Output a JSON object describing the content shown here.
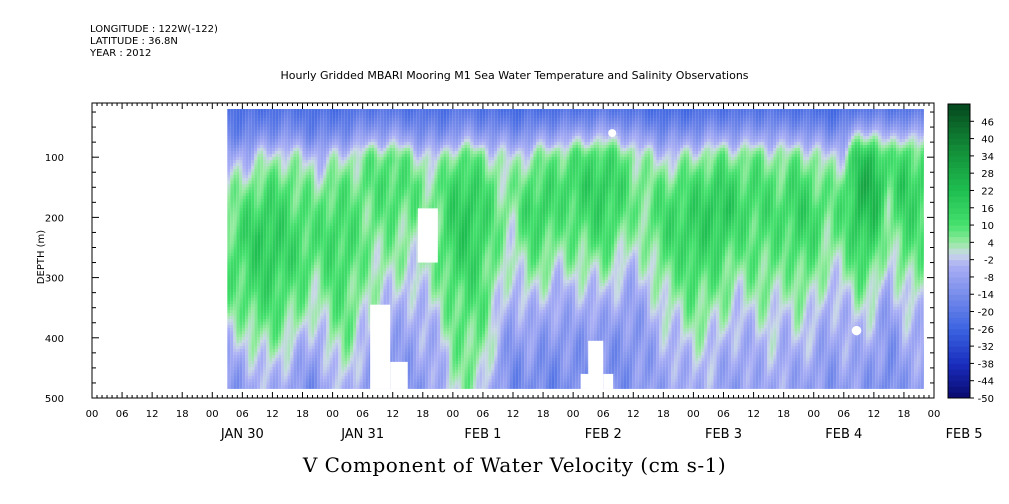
{
  "meta": {
    "longitude": "LONGITUDE : 122W(-122)",
    "latitude": "LATITUDE : 36.8N",
    "year": "YEAR : 2012"
  },
  "chart_data": {
    "type": "heatmap",
    "title": "Hourly Gridded MBARI Mooring M1 Sea Water Temperature and Salinity Observations",
    "xlabel": "V Component of Water Velocity (cm s-1)",
    "ylabel": "DEPTH (m)",
    "xlim_hours": [
      -24,
      144
    ],
    "data_start_hour": 3,
    "data_end_hour": 142,
    "ylim": [
      500,
      10
    ],
    "data_top_depth": 20,
    "data_bottom_depth": 485,
    "y_ticks": [
      100,
      200,
      300,
      400,
      500
    ],
    "x_hour_ticks": [
      "00",
      "06",
      "12",
      "18",
      "00",
      "06",
      "12",
      "18",
      "00",
      "06",
      "12",
      "18",
      "00",
      "06",
      "12",
      "18",
      "00",
      "06",
      "12",
      "18",
      "00",
      "06",
      "12",
      "18",
      "00",
      "06",
      "12",
      "18",
      "00",
      "06",
      "12"
    ],
    "x_hour_tick_values": [
      -24,
      -18,
      -12,
      -6,
      0,
      6,
      12,
      18,
      24,
      30,
      36,
      42,
      48,
      54,
      60,
      66,
      72,
      78,
      84,
      90,
      96,
      102,
      108,
      114,
      120,
      126,
      132,
      138,
      144,
      150,
      156
    ],
    "date_labels": [
      {
        "label": "JAN 30",
        "hour": 6
      },
      {
        "label": "JAN 31",
        "hour": 30
      },
      {
        "label": "FEB  1",
        "hour": 54
      },
      {
        "label": "FEB  2",
        "hour": 78
      },
      {
        "label": "FEB  3",
        "hour": 102
      },
      {
        "label": "FEB  4",
        "hour": 126
      },
      {
        "label": "FEB  5",
        "hour": 150
      }
    ],
    "colorbar_levels": [
      46,
      40,
      34,
      28,
      22,
      16,
      10,
      4,
      -2,
      -8,
      -14,
      -20,
      -26,
      -32,
      -38,
      -44,
      -50
    ],
    "colorbar_range": [
      -50,
      52
    ],
    "surface_layer": {
      "depth_top": 20,
      "depth_bottom": 90,
      "value": -24
    },
    "columns": [
      {
        "hour": 3,
        "v": [
          -20,
          -16,
          -6,
          2,
          4,
          8,
          10,
          8,
          4,
          -2,
          -8,
          -12
        ]
      },
      {
        "hour": 6,
        "v": [
          -20,
          -14,
          -4,
          4,
          10,
          14,
          12,
          10,
          6,
          0,
          -6,
          -10
        ]
      },
      {
        "hour": 9,
        "v": [
          -22,
          -12,
          0,
          8,
          14,
          18,
          16,
          14,
          10,
          4,
          -2,
          -6
        ]
      },
      {
        "hour": 12,
        "v": [
          -20,
          -10,
          2,
          10,
          16,
          18,
          18,
          14,
          10,
          6,
          0,
          -4
        ]
      },
      {
        "hour": 15,
        "v": [
          -18,
          -8,
          4,
          10,
          12,
          14,
          14,
          10,
          8,
          2,
          -4,
          -8
        ]
      },
      {
        "hour": 18,
        "v": [
          -20,
          -12,
          0,
          6,
          10,
          12,
          12,
          8,
          4,
          -2,
          -8,
          -12
        ]
      },
      {
        "hour": 21,
        "v": [
          -22,
          -14,
          -2,
          4,
          8,
          10,
          8,
          4,
          0,
          -6,
          -10,
          -14
        ]
      },
      {
        "hour": 24,
        "v": [
          -22,
          -12,
          0,
          8,
          12,
          14,
          12,
          10,
          8,
          4,
          0,
          -4
        ]
      },
      {
        "hour": 27,
        "v": [
          -20,
          -10,
          2,
          8,
          10,
          12,
          12,
          10,
          8,
          6,
          2,
          -2
        ]
      },
      {
        "hour": 30,
        "v": [
          -18,
          -6,
          6,
          8,
          8,
          8,
          6,
          4,
          2,
          -2,
          -6,
          -10
        ]
      },
      {
        "hour": 33,
        "v": [
          -16,
          -4,
          8,
          10,
          8,
          6,
          4,
          2,
          -2,
          -6,
          -10,
          -12
        ]
      },
      {
        "hour": 36,
        "v": [
          -18,
          -4,
          10,
          12,
          10,
          6,
          4,
          0,
          -4,
          -8,
          -12,
          -14
        ]
      },
      {
        "hour": 39,
        "v": [
          -20,
          -6,
          6,
          10,
          8,
          4,
          2,
          -2,
          -6,
          -8,
          -10,
          -12
        ]
      },
      {
        "hour": 42,
        "v": [
          -20,
          -10,
          2,
          6,
          6,
          4,
          2,
          0,
          -4,
          -6,
          -8,
          -10
        ]
      },
      {
        "hour": 45,
        "v": [
          -22,
          -12,
          0,
          6,
          8,
          8,
          6,
          4,
          0,
          -4,
          -6,
          -8
        ]
      },
      {
        "hour": 48,
        "v": [
          -18,
          -6,
          8,
          14,
          16,
          16,
          14,
          10,
          8,
          6,
          4,
          2
        ]
      },
      {
        "hour": 51,
        "v": [
          -16,
          -4,
          10,
          16,
          20,
          18,
          16,
          12,
          10,
          8,
          6,
          4
        ]
      },
      {
        "hour": 54,
        "v": [
          -20,
          -6,
          6,
          12,
          14,
          14,
          12,
          10,
          8,
          6,
          4,
          0
        ]
      },
      {
        "hour": 57,
        "v": [
          -22,
          -8,
          2,
          6,
          8,
          6,
          4,
          2,
          0,
          -4,
          -8,
          -10
        ]
      },
      {
        "hour": 60,
        "v": [
          -24,
          -10,
          0,
          4,
          4,
          2,
          0,
          -4,
          -8,
          -12,
          -14,
          -16
        ]
      },
      {
        "hour": 63,
        "v": [
          -22,
          -8,
          4,
          10,
          14,
          10,
          6,
          2,
          -4,
          -8,
          -12,
          -14
        ]
      },
      {
        "hour": 66,
        "v": [
          -22,
          -6,
          6,
          12,
          16,
          12,
          6,
          0,
          -6,
          -10,
          -14,
          -16
        ]
      },
      {
        "hour": 69,
        "v": [
          -20,
          -4,
          8,
          12,
          10,
          6,
          2,
          -4,
          -8,
          -12,
          -14,
          -16
        ]
      },
      {
        "hour": 72,
        "v": [
          -20,
          -2,
          10,
          14,
          12,
          8,
          4,
          -2,
          -6,
          -10,
          -12,
          -14
        ]
      },
      {
        "hour": 75,
        "v": [
          -18,
          0,
          12,
          16,
          14,
          10,
          4,
          -2,
          -8,
          -12,
          -14,
          -16
        ]
      },
      {
        "hour": 78,
        "v": [
          -16,
          2,
          14,
          18,
          16,
          12,
          6,
          0,
          -6,
          -10,
          -12,
          -14
        ]
      },
      {
        "hour": 81,
        "v": [
          -18,
          0,
          10,
          14,
          12,
          8,
          2,
          -4,
          -8,
          -12,
          -14,
          -14
        ]
      },
      {
        "hour": 84,
        "v": [
          -20,
          -4,
          6,
          8,
          6,
          2,
          -2,
          -6,
          -10,
          -12,
          -12,
          -12
        ]
      },
      {
        "hour": 87,
        "v": [
          -22,
          -8,
          2,
          6,
          8,
          6,
          2,
          -2,
          -6,
          -8,
          -10,
          -10
        ]
      },
      {
        "hour": 90,
        "v": [
          -24,
          -10,
          0,
          8,
          12,
          12,
          8,
          4,
          0,
          -4,
          -6,
          -8
        ]
      },
      {
        "hour": 93,
        "v": [
          -24,
          -10,
          2,
          10,
          14,
          14,
          10,
          6,
          2,
          -2,
          -6,
          -8
        ]
      },
      {
        "hour": 96,
        "v": [
          -22,
          -8,
          4,
          12,
          16,
          16,
          14,
          10,
          6,
          2,
          -2,
          -4
        ]
      },
      {
        "hour": 99,
        "v": [
          -20,
          -6,
          6,
          14,
          18,
          16,
          12,
          8,
          4,
          0,
          -4,
          -6
        ]
      },
      {
        "hour": 102,
        "v": [
          -20,
          -4,
          8,
          16,
          20,
          16,
          10,
          6,
          2,
          -2,
          -6,
          -8
        ]
      },
      {
        "hour": 105,
        "v": [
          -20,
          -6,
          6,
          12,
          14,
          10,
          6,
          2,
          -2,
          -6,
          -8,
          -10
        ]
      },
      {
        "hour": 108,
        "v": [
          -18,
          -4,
          8,
          12,
          12,
          10,
          8,
          4,
          0,
          -4,
          -6,
          -8
        ]
      },
      {
        "hour": 111,
        "v": [
          -18,
          -4,
          6,
          10,
          12,
          10,
          8,
          6,
          2,
          -2,
          -4,
          -6
        ]
      },
      {
        "hour": 114,
        "v": [
          -20,
          -6,
          4,
          10,
          12,
          10,
          6,
          2,
          -2,
          -4,
          -6,
          -8
        ]
      },
      {
        "hour": 117,
        "v": [
          -20,
          -4,
          8,
          14,
          16,
          14,
          10,
          6,
          2,
          -2,
          -6,
          -8
        ]
      },
      {
        "hour": 120,
        "v": [
          -22,
          -8,
          4,
          10,
          14,
          12,
          8,
          4,
          0,
          -4,
          -8,
          -10
        ]
      },
      {
        "hour": 123,
        "v": [
          -24,
          -10,
          0,
          6,
          8,
          6,
          2,
          -2,
          -6,
          -8,
          -10,
          -12
        ]
      },
      {
        "hour": 126,
        "v": [
          -22,
          -8,
          2,
          8,
          10,
          8,
          4,
          0,
          -4,
          -6,
          -8,
          -10
        ]
      },
      {
        "hour": 129,
        "v": [
          -16,
          6,
          20,
          24,
          22,
          18,
          12,
          6,
          0,
          -4,
          -8,
          -10
        ]
      },
      {
        "hour": 132,
        "v": [
          -14,
          8,
          22,
          26,
          22,
          16,
          10,
          4,
          -2,
          -6,
          -10,
          -12
        ]
      },
      {
        "hour": 135,
        "v": [
          -18,
          -2,
          8,
          10,
          6,
          2,
          -2,
          -6,
          -10,
          -12,
          -14,
          -16
        ]
      },
      {
        "hour": 138,
        "v": [
          -16,
          4,
          14,
          18,
          16,
          12,
          8,
          2,
          -2,
          -6,
          -8,
          -10
        ]
      },
      {
        "hour": 141,
        "v": [
          -16,
          2,
          10,
          14,
          12,
          10,
          6,
          2,
          -2,
          -6,
          -8,
          -10
        ]
      }
    ],
    "missing_regions": [
      {
        "h0": 31.5,
        "h1": 35.5,
        "d0": 345,
        "d1": 485
      },
      {
        "h0": 35.5,
        "h1": 39.0,
        "d0": 440,
        "d1": 485
      },
      {
        "h0": 41.0,
        "h1": 45.0,
        "d0": 185,
        "d1": 275
      },
      {
        "h0": 75.0,
        "h1": 78.0,
        "d0": 405,
        "d1": 485
      },
      {
        "h0": 73.5,
        "h1": 77.0,
        "d0": 460,
        "d1": 485
      },
      {
        "h0": 78.0,
        "h1": 80.0,
        "d0": 460,
        "d1": 485
      },
      {
        "h0": 79.3,
        "h1": 80.3,
        "d0": 55,
        "d1": 65,
        "shape": "dot"
      },
      {
        "h0": 127.8,
        "h1": 129.3,
        "d0": 383,
        "d1": 393,
        "shape": "dot"
      }
    ]
  }
}
